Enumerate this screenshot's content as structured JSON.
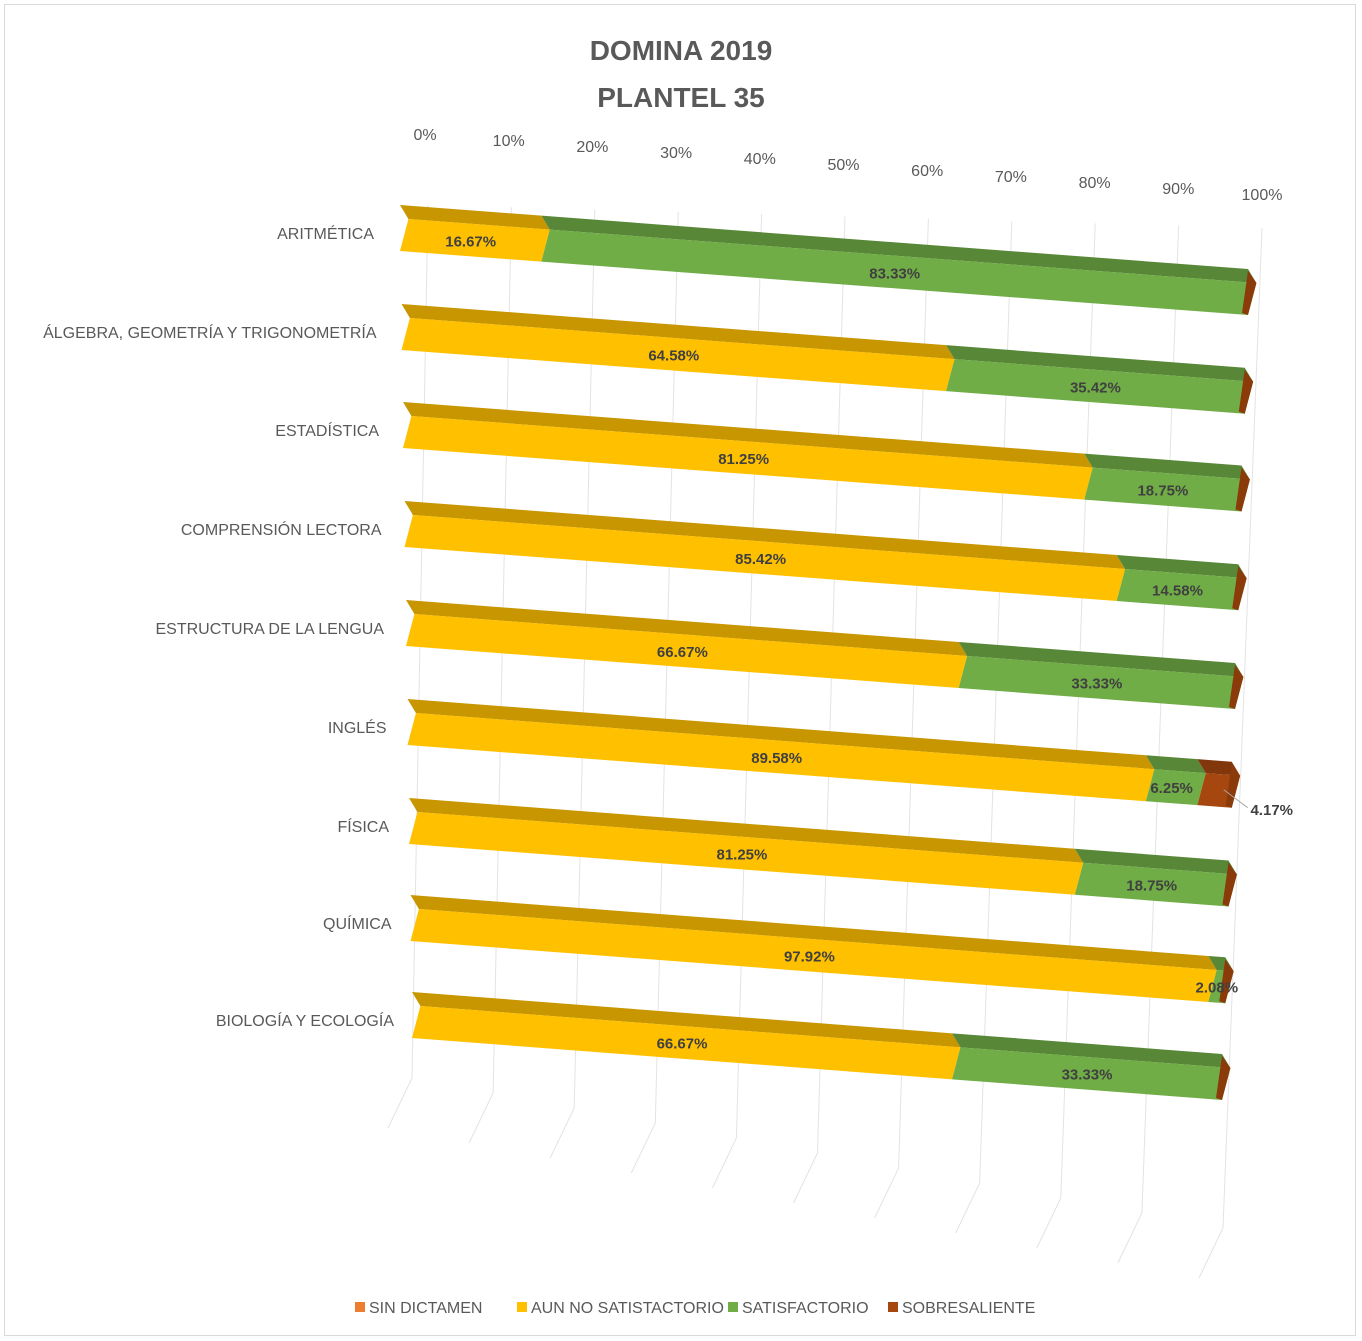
{
  "chart_data": {
    "type": "bar",
    "orientation": "horizontal",
    "stacked": "percent",
    "title": "DOMINA 2019",
    "subtitle": "PLANTEL 35",
    "xticks": [
      "0%",
      "10%",
      "20%",
      "30%",
      "40%",
      "50%",
      "60%",
      "70%",
      "80%",
      "90%",
      "100%"
    ],
    "xlim": [
      0,
      100
    ],
    "grid": true,
    "legend_position": "bottom",
    "categories": [
      "ARITMÉTICA",
      "ÁLGEBRA, GEOMETRÍA Y TRIGONOMETRÍA",
      "ESTADÍSTICA",
      "COMPRENSIÓN LECTORA",
      "ESTRUCTURA DE LA LENGUA",
      "INGLÉS",
      "FÍSICA",
      "QUÍMICA",
      "BIOLOGÍA Y ECOLOGÍA"
    ],
    "series": [
      {
        "name": "SIN DICTAMEN",
        "color": "#ED7D31",
        "values": [
          0,
          0,
          0,
          0,
          0,
          0,
          0,
          0,
          0
        ],
        "labels": [
          "",
          "",
          "",
          "",
          "",
          "",
          "",
          "",
          ""
        ]
      },
      {
        "name": "AUN NO SATISTACTORIO",
        "color": "#FFC000",
        "values": [
          16.67,
          64.58,
          81.25,
          85.42,
          66.67,
          89.58,
          81.25,
          97.92,
          66.67
        ],
        "labels": [
          "16.67%",
          "64.58%",
          "81.25%",
          "85.42%",
          "66.67%",
          "89.58%",
          "81.25%",
          "97.92%",
          "66.67%"
        ]
      },
      {
        "name": "SATISFACTORIO",
        "color": "#70AD47",
        "values": [
          83.33,
          35.42,
          18.75,
          14.58,
          33.33,
          6.25,
          18.75,
          2.08,
          33.33
        ],
        "labels": [
          "83.33%",
          "35.42%",
          "18.75%",
          "14.58%",
          "33.33%",
          "6.25%",
          "18.75%",
          "2.08%",
          "33.33%"
        ]
      },
      {
        "name": "SOBRESALIENTE",
        "color": "#A5470E",
        "values": [
          0,
          0,
          0,
          0,
          0,
          4.17,
          0,
          0,
          0
        ],
        "labels": [
          "",
          "",
          "",
          "",
          "",
          "4.17%",
          "",
          "",
          ""
        ]
      }
    ]
  }
}
